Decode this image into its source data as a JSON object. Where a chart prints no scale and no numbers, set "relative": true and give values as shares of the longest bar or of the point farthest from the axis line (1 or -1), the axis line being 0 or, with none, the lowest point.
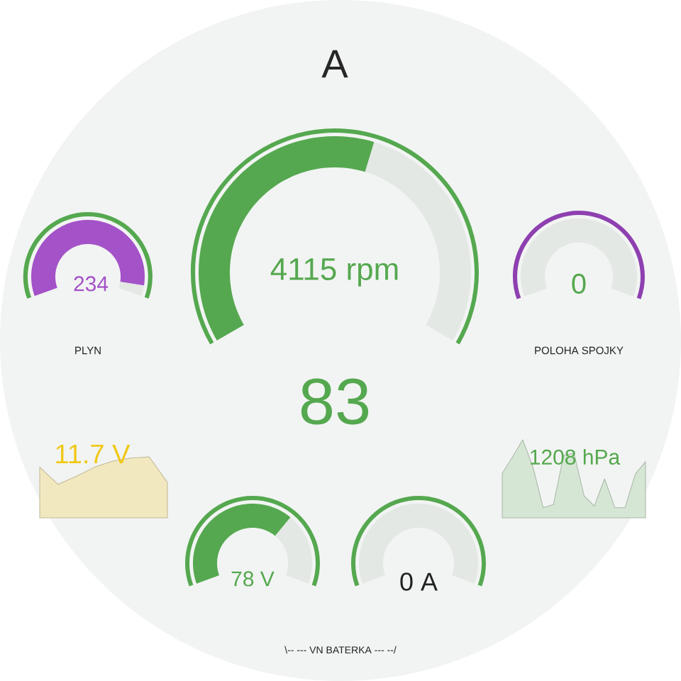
{
  "chart_data": [
    {
      "type": "donut",
      "title": "A",
      "categories": [
        null,
        null
      ],
      "values": [
        57,
        43
      ],
      "colors": [
        "#55a84f",
        "#e4e8e5"
      ],
      "annotations": [
        "4115 rpm",
        "83"
      ]
    },
    {
      "type": "donut",
      "xlabel": "PLYN",
      "categories": [
        null,
        null
      ],
      "values": [
        95,
        5
      ],
      "colors": [
        "#a452c8",
        "#e4e8e5"
      ],
      "annotations": [
        "234"
      ]
    },
    {
      "type": "pie",
      "xlabel": "POLOHA SPOJKY",
      "categories": [
        null,
        null
      ],
      "values": [
        0,
        100
      ],
      "colors": [
        "#55a84f",
        "#e4e8e5"
      ],
      "annotations": [
        "0"
      ]
    },
    {
      "type": "area",
      "relative": true,
      "categories": [
        null,
        null,
        null,
        null,
        null,
        null,
        null,
        null
      ],
      "values": [
        0.83,
        0.55,
        0.68,
        0.83,
        0.93,
        0.98,
        1,
        0.58
      ],
      "color": "#f1e8bf",
      "annotations": [
        "11.7 V"
      ]
    },
    {
      "type": "area",
      "relative": true,
      "categories": [
        null,
        null,
        null,
        null,
        null,
        null,
        null,
        null,
        null,
        null,
        null,
        null,
        null,
        null,
        null
      ],
      "values": [
        0.57,
        0.78,
        1,
        0.65,
        0.13,
        0.17,
        0.8,
        0.83,
        0.28,
        0.15,
        0.5,
        0.13,
        0.13,
        0.56,
        0.72
      ],
      "color": "#d6e6d4",
      "annotations": [
        "1208 hPa"
      ]
    },
    {
      "type": "donut",
      "categories": [
        null,
        null
      ],
      "values": [
        68,
        32
      ],
      "colors": [
        "#55a84f",
        "#e4e8e5"
      ],
      "annotations": [
        "78 V",
        "\\-- --- VN BATERKA --- --/"
      ]
    },
    {
      "type": "pie",
      "categories": [
        null,
        null
      ],
      "values": [
        0,
        100
      ],
      "colors": [
        "#55a84f",
        "#e4e8e5"
      ],
      "annotations": [
        "0 A"
      ]
    }
  ]
}
